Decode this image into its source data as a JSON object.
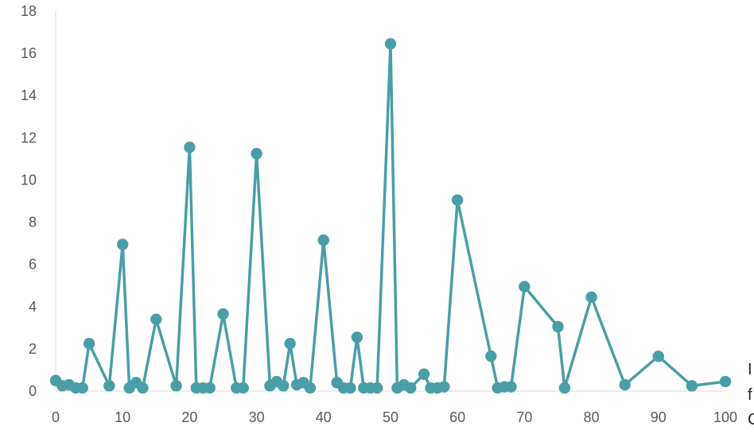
{
  "chart_data": {
    "type": "line",
    "title": "",
    "xlabel": "",
    "ylabel": "",
    "xlim": [
      0,
      100
    ],
    "ylim": [
      0,
      18
    ],
    "x_ticks": [
      "0",
      "10",
      "20",
      "30",
      "40",
      "50",
      "60",
      "70",
      "80",
      "90",
      "100"
    ],
    "y_ticks": [
      "0",
      "2",
      "4",
      "6",
      "8",
      "10",
      "12",
      "14",
      "16",
      "18"
    ],
    "grid": false,
    "legend": "none",
    "line_color": "#4a9ea8",
    "series": [
      {
        "points": [
          [
            0,
            0.5
          ],
          [
            1,
            0.25
          ],
          [
            2,
            0.3
          ],
          [
            3,
            0.15
          ],
          [
            4,
            0.15
          ],
          [
            5,
            2.25
          ],
          [
            8,
            0.25
          ],
          [
            10,
            6.95
          ],
          [
            11,
            0.15
          ],
          [
            12,
            0.4
          ],
          [
            13,
            0.15
          ],
          [
            15,
            3.4
          ],
          [
            18,
            0.25
          ],
          [
            20,
            11.55
          ],
          [
            21,
            0.15
          ],
          [
            22,
            0.15
          ],
          [
            23,
            0.15
          ],
          [
            25,
            3.65
          ],
          [
            27,
            0.15
          ],
          [
            28,
            0.15
          ],
          [
            30,
            11.25
          ],
          [
            32,
            0.25
          ],
          [
            33,
            0.45
          ],
          [
            34,
            0.25
          ],
          [
            35,
            2.25
          ],
          [
            36,
            0.3
          ],
          [
            37,
            0.4
          ],
          [
            38,
            0.15
          ],
          [
            40,
            7.15
          ],
          [
            42,
            0.4
          ],
          [
            43,
            0.15
          ],
          [
            44,
            0.15
          ],
          [
            45,
            2.55
          ],
          [
            46,
            0.15
          ],
          [
            47,
            0.15
          ],
          [
            48,
            0.15
          ],
          [
            50,
            16.45
          ],
          [
            51,
            0.15
          ],
          [
            52,
            0.3
          ],
          [
            53,
            0.15
          ],
          [
            55,
            0.8
          ],
          [
            56,
            0.15
          ],
          [
            57,
            0.15
          ],
          [
            58,
            0.2
          ],
          [
            60,
            9.05
          ],
          [
            65,
            1.65
          ],
          [
            66,
            0.15
          ],
          [
            67,
            0.2
          ],
          [
            68,
            0.2
          ],
          [
            70,
            4.95
          ],
          [
            75,
            3.05
          ],
          [
            76,
            0.15
          ],
          [
            80,
            4.45
          ],
          [
            85,
            0.3
          ],
          [
            90,
            1.65
          ],
          [
            95,
            0.25
          ],
          [
            100,
            0.45
          ]
        ]
      }
    ]
  },
  "cut_text": [
    "I",
    "f",
    "C"
  ]
}
